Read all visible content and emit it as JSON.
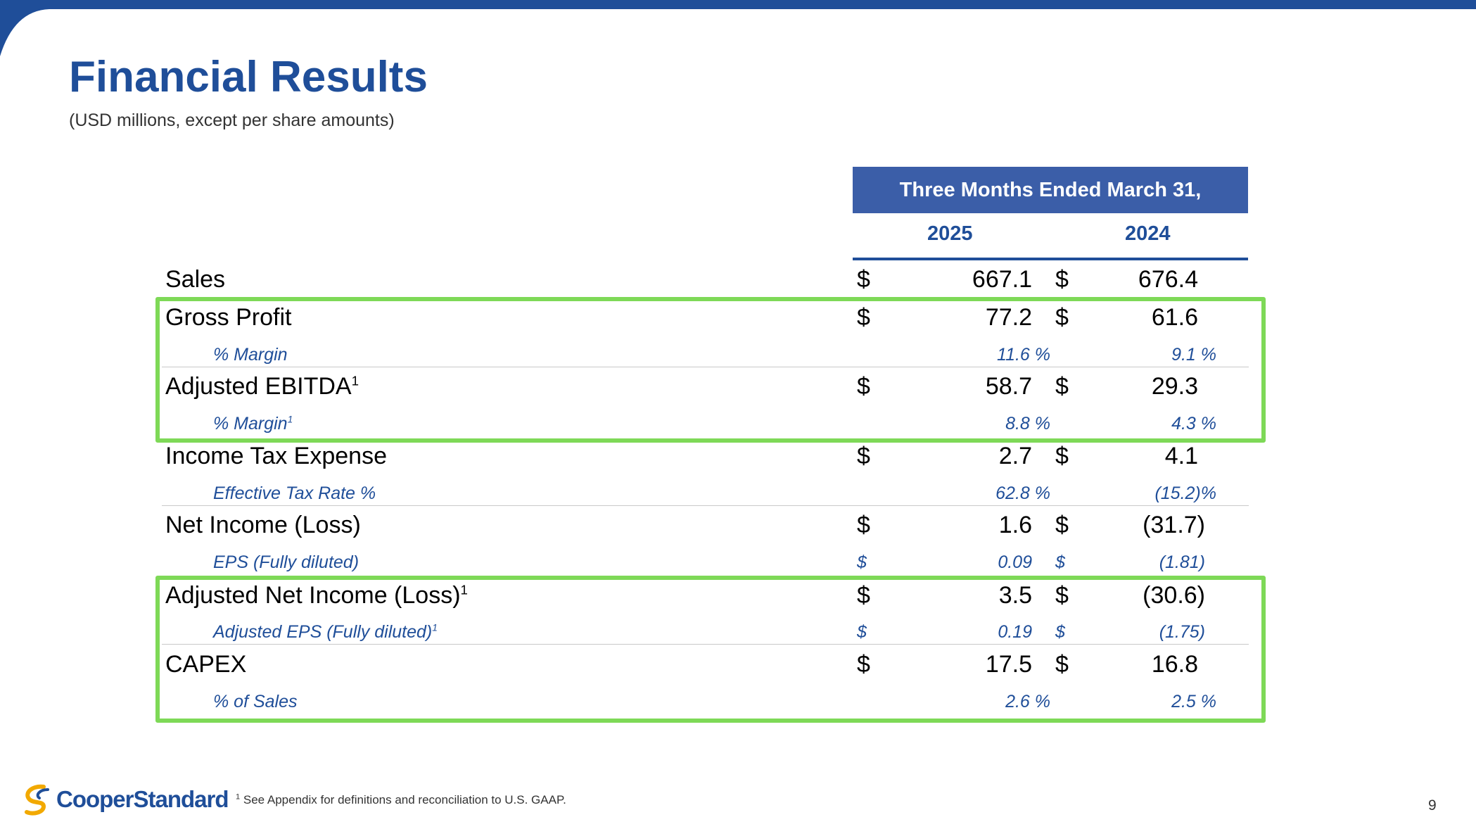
{
  "header": {
    "title": "Financial Results",
    "subtitle": "(USD millions, except per share amounts)"
  },
  "table": {
    "period_header": "Three Months Ended March 31,",
    "years": [
      "2025",
      "2024"
    ],
    "rows": [
      {
        "label": "Sales",
        "sup": "",
        "cur_a": "$",
        "val_a": "667.1",
        "cur_b": "$",
        "val_b": "676.4"
      },
      {
        "label": "Gross Profit",
        "sup": "",
        "cur_a": "$",
        "val_a": "77.2",
        "cur_b": "$",
        "val_b": "61.6"
      },
      {
        "label": "% Margin",
        "sup": "",
        "cur_a": "",
        "val_a": "11.6 %",
        "cur_b": "",
        "val_b": "9.1 %"
      },
      {
        "label": "Adjusted EBITDA",
        "sup": "1",
        "cur_a": "$",
        "val_a": "58.7",
        "cur_b": "$",
        "val_b": "29.3"
      },
      {
        "label": "% Margin",
        "sup": "1",
        "cur_a": "",
        "val_a": "8.8 %",
        "cur_b": "",
        "val_b": "4.3 %"
      },
      {
        "label": "Income Tax Expense",
        "sup": "",
        "cur_a": "$",
        "val_a": "2.7",
        "cur_b": "$",
        "val_b": "4.1"
      },
      {
        "label": "Effective Tax Rate %",
        "sup": "",
        "cur_a": "",
        "val_a": "62.8 %",
        "cur_b": "",
        "val_b": "(15.2)%"
      },
      {
        "label": "Net Income (Loss)",
        "sup": "",
        "cur_a": "$",
        "val_a": "1.6",
        "cur_b": "$",
        "val_b": "(31.7)"
      },
      {
        "label": "EPS (Fully diluted)",
        "sup": "",
        "cur_a": "$",
        "val_a": "0.09",
        "cur_b": "$",
        "val_b": "(1.81)"
      },
      {
        "label": "Adjusted Net Income (Loss)",
        "sup": "1",
        "cur_a": "$",
        "val_a": "3.5",
        "cur_b": "$",
        "val_b": "(30.6)"
      },
      {
        "label": "Adjusted EPS (Fully diluted)",
        "sup": "1",
        "cur_a": "$",
        "val_a": "0.19",
        "cur_b": "$",
        "val_b": "(1.75)"
      },
      {
        "label": "CAPEX",
        "sup": "",
        "cur_a": "$",
        "val_a": "17.5",
        "cur_b": "$",
        "val_b": "16.8"
      },
      {
        "label": "% of Sales",
        "sup": "",
        "cur_a": "",
        "val_a": "2.6 %",
        "cur_b": "",
        "val_b": "2.5 %"
      }
    ]
  },
  "footer": {
    "logo_text": "CooperStandard",
    "footnote_sup": "1",
    "footnote": "See Appendix for definitions and reconciliation to U.S. GAAP.",
    "page_number": "9"
  },
  "colors": {
    "brand_blue": "#1f4e99",
    "header_fill": "#3b5ea8",
    "highlight_green": "#7ed957",
    "logo_gold": "#f2a900"
  },
  "icons": {
    "logo_mark": "cooper-standard-swoosh-icon"
  }
}
